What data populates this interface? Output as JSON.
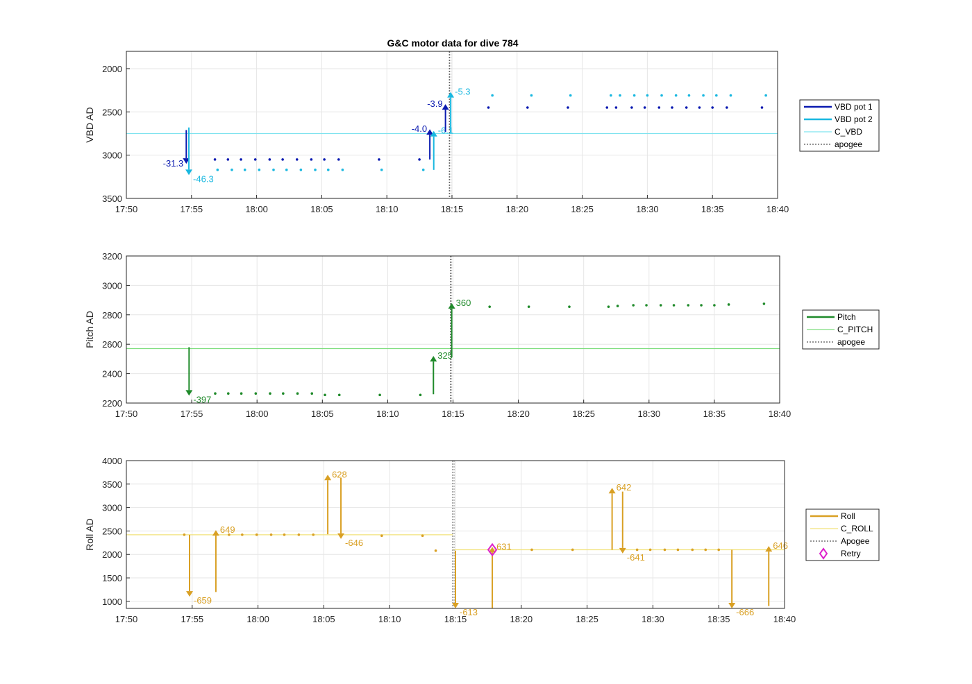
{
  "title": "G&C motor data for dive 784",
  "chart_data": [
    {
      "type": "scatter",
      "ylabel": "VBD AD",
      "xlim": [
        "17:50",
        "18:40"
      ],
      "ylim": [
        3500,
        1800
      ],
      "y_reversed": true,
      "xticks": [
        "17:50",
        "17:55",
        "18:00",
        "18:05",
        "18:10",
        "18:15",
        "18:20",
        "18:25",
        "18:30",
        "18:35",
        "18:40"
      ],
      "yticks": [
        2000,
        2500,
        3000,
        3500
      ],
      "grid": true,
      "legend": [
        "VBD pot 1",
        "VBD pot 2",
        "C_VBD",
        "apogee"
      ],
      "colors": {
        "pot1": "#0a1ab0",
        "pot2": "#1ab8e0",
        "ref": "#7fe3ef",
        "apogee": "#555555"
      },
      "reference": 2750,
      "apogee": "18:14.8",
      "series": [
        {
          "name": "VBD pot 1",
          "x": [
            "17:56.8",
            "17:57.8",
            "17:58.8",
            "17:59.9",
            "18:01.0",
            "18:02.0",
            "18:03.1",
            "18:04.2",
            "18:05.2",
            "18:06.3",
            "18:09.4",
            "18:12.5",
            "18:17.8",
            "18:20.8",
            "18:23.9",
            "18:26.9",
            "18:27.6",
            "18:28.8",
            "18:29.8",
            "18:30.9",
            "18:31.9",
            "18:33.0",
            "18:34.0",
            "18:35.0",
            "18:36.1",
            "18:38.8"
          ],
          "values": [
            3050,
            3050,
            3050,
            3050,
            3050,
            3050,
            3050,
            3050,
            3050,
            3050,
            3050,
            3050,
            2450,
            2450,
            2450,
            2450,
            2450,
            2450,
            2450,
            2450,
            2450,
            2450,
            2450,
            2450,
            2450,
            2450
          ]
        },
        {
          "name": "VBD pot 2",
          "x": [
            "17:57.0",
            "17:58.1",
            "17:59.1",
            "18:00.2",
            "18:01.3",
            "18:02.3",
            "18:03.4",
            "18:04.5",
            "18:05.5",
            "18:06.6",
            "18:09.6",
            "18:12.8",
            "18:18.1",
            "18:21.1",
            "18:24.1",
            "18:27.2",
            "18:27.9",
            "18:29.0",
            "18:30.0",
            "18:31.1",
            "18:32.2",
            "18:33.2",
            "18:34.3",
            "18:35.3",
            "18:36.4",
            "18:39.1"
          ],
          "values": [
            3170,
            3170,
            3170,
            3170,
            3170,
            3170,
            3170,
            3170,
            3170,
            3170,
            3170,
            3170,
            2310,
            2310,
            2310,
            2310,
            2310,
            2310,
            2310,
            2310,
            2310,
            2310,
            2310,
            2310,
            2310,
            2310
          ]
        }
      ],
      "arrows": [
        {
          "series": "pot1",
          "x": "17:54.6",
          "from": 2710,
          "to": 3100,
          "label": "-31.3"
        },
        {
          "series": "pot2",
          "x": "17:54.8",
          "from": 2680,
          "to": 3230,
          "label": "-46.3"
        },
        {
          "series": "pot1",
          "x": "18:13.3",
          "from": 3050,
          "to": 2700,
          "label": "-4.0"
        },
        {
          "series": "pot2",
          "x": "18:13.6",
          "from": 3170,
          "to": 2720,
          "label": "-6.1"
        },
        {
          "series": "pot1",
          "x": "18:14.5",
          "from": 2730,
          "to": 2410,
          "label": "-3.9"
        },
        {
          "series": "pot2",
          "x": "18:14.9",
          "from": 2740,
          "to": 2270,
          "label": "-5.3"
        }
      ]
    },
    {
      "type": "scatter",
      "ylabel": "Pitch AD",
      "xlim": [
        "17:50",
        "18:40"
      ],
      "ylim": [
        2200,
        3200
      ],
      "xticks": [
        "17:50",
        "17:55",
        "18:00",
        "18:05",
        "18:10",
        "18:15",
        "18:20",
        "18:25",
        "18:30",
        "18:35",
        "18:40"
      ],
      "yticks": [
        2200,
        2400,
        2600,
        2800,
        3000,
        3200
      ],
      "grid": true,
      "legend": [
        "Pitch",
        "C_PITCH",
        "apogee"
      ],
      "colors": {
        "pitch": "#1f8a2a",
        "ref": "#7ddd7d",
        "apogee": "#555555"
      },
      "reference": 2570,
      "apogee": "18:14.8",
      "series": [
        {
          "name": "Pitch",
          "x": [
            "17:56.8",
            "17:57.8",
            "17:58.8",
            "17:59.9",
            "18:01.0",
            "18:02.0",
            "18:03.1",
            "18:04.2",
            "18:05.2",
            "18:06.3",
            "18:09.4",
            "18:12.5",
            "18:17.8",
            "18:20.8",
            "18:23.9",
            "18:26.9",
            "18:27.6",
            "18:28.8",
            "18:29.8",
            "18:30.9",
            "18:31.9",
            "18:33.0",
            "18:34.0",
            "18:35.0",
            "18:36.1",
            "18:38.8"
          ],
          "values": [
            2265,
            2265,
            2265,
            2265,
            2265,
            2265,
            2265,
            2265,
            2255,
            2255,
            2255,
            2255,
            2855,
            2855,
            2855,
            2855,
            2860,
            2865,
            2865,
            2865,
            2865,
            2865,
            2865,
            2865,
            2870,
            2875
          ]
        }
      ],
      "arrows": [
        {
          "x": "17:54.8",
          "from": 2580,
          "to": 2250,
          "label": "-397"
        },
        {
          "x": "18:13.5",
          "from": 2260,
          "to": 2520,
          "label": "325"
        },
        {
          "x": "18:14.9",
          "from": 2510,
          "to": 2880,
          "label": "360"
        }
      ]
    },
    {
      "type": "scatter",
      "ylabel": "Roll AD",
      "xlim": [
        "17:50",
        "18:40"
      ],
      "ylim": [
        850,
        4000
      ],
      "xticks": [
        "17:50",
        "17:55",
        "18:00",
        "18:05",
        "18:10",
        "18:15",
        "18:20",
        "18:25",
        "18:30",
        "18:35",
        "18:40"
      ],
      "yticks": [
        1000,
        1500,
        2000,
        2500,
        3000,
        3500,
        4000
      ],
      "grid": true,
      "legend": [
        "Roll",
        "C_ROLL",
        "Apogee",
        "Retry"
      ],
      "colors": {
        "roll": "#d9a024",
        "ref": "#f2e27a",
        "apogee": "#555555",
        "retry": "#dd22cc"
      },
      "reference_segments": [
        {
          "from": "17:50",
          "to": "18:14.8",
          "value": 2420
        },
        {
          "from": "18:14.8",
          "to": "18:40",
          "value": 2100
        }
      ],
      "apogee": "18:14.8",
      "series": [
        {
          "name": "Roll",
          "x": [
            "17:54.4",
            "17:57.8",
            "17:58.8",
            "17:59.9",
            "18:01.0",
            "18:02.0",
            "18:03.1",
            "18:04.2",
            "18:09.4",
            "18:12.5",
            "18:13.5",
            "18:20.8",
            "18:23.9",
            "18:28.8",
            "18:29.8",
            "18:30.9",
            "18:31.9",
            "18:33.0",
            "18:34.0",
            "18:35.0"
          ],
          "values": [
            2420,
            2420,
            2420,
            2420,
            2420,
            2420,
            2420,
            2420,
            2400,
            2400,
            2080,
            2100,
            2100,
            2100,
            2100,
            2100,
            2100,
            2100,
            2100,
            2100
          ]
        },
        {
          "name": "Retry",
          "x": [
            "18:17.8"
          ],
          "values": [
            2100
          ]
        }
      ],
      "arrows": [
        {
          "x": "17:54.8",
          "from": 2420,
          "to": 1100,
          "label": "-659"
        },
        {
          "x": "17:56.8",
          "from": 1200,
          "to": 2520,
          "label": "649"
        },
        {
          "x": "18:05.3",
          "from": 2430,
          "to": 3700,
          "label": "628"
        },
        {
          "x": "18:06.3",
          "from": 3630,
          "to": 2330,
          "label": "-646"
        },
        {
          "x": "18:15.0",
          "from": 2080,
          "to": 850,
          "label": "-613"
        },
        {
          "x": "18:17.8",
          "from": 850,
          "to": 2160,
          "label": "631"
        },
        {
          "x": "18:26.9",
          "from": 2100,
          "to": 3420,
          "label": "642"
        },
        {
          "x": "18:27.7",
          "from": 3340,
          "to": 2020,
          "label": "-641"
        },
        {
          "x": "18:36.0",
          "from": 2100,
          "to": 850,
          "label": "-666"
        },
        {
          "x": "18:38.8",
          "from": 900,
          "to": 2180,
          "label": "646"
        }
      ]
    }
  ]
}
